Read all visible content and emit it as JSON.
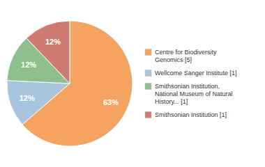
{
  "chart_data": {
    "type": "pie",
    "categories": [
      "Centre for Biodiversity\nGenomics [5]",
      "Wellcome Sanger Institute [1]",
      "Smithsonian Institution,\nNational Museum of Natural\nHistory... [1]",
      "Smithsonian Institution [1]"
    ],
    "values": [
      63,
      12,
      12,
      12
    ],
    "value_labels": [
      "63%",
      "12%",
      "12%",
      "12%"
    ],
    "colors": [
      "#F4A460",
      "#A8C4DC",
      "#8FBF8F",
      "#CD7B72"
    ],
    "data_labels": true,
    "legend": "right"
  }
}
